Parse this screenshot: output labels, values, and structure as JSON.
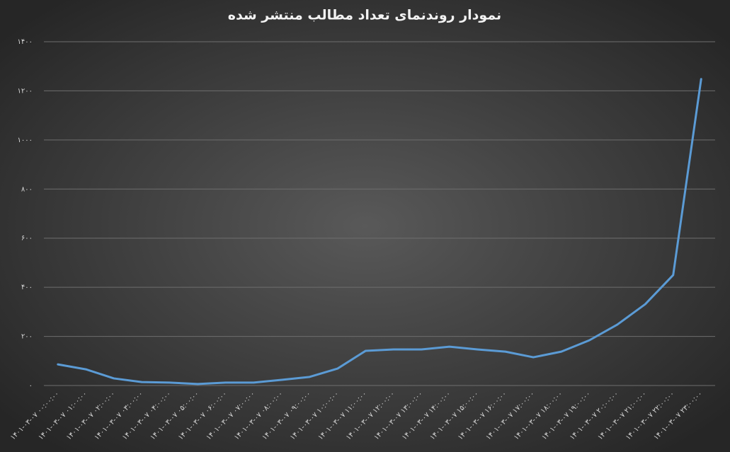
{
  "chart_data": {
    "type": "line",
    "title": "نمودار روندنمای تعداد مطالب منتشر شده",
    "categories": [
      "۱۴۰۱-۰۳-۰۷ ۰۰:۰۰:۰۰",
      "۱۴۰۱-۰۳-۰۷ ۰۱:۰۰:۰۰",
      "۱۴۰۱-۰۳-۰۷ ۰۲:۰۰:۰۰",
      "۱۴۰۱-۰۳-۰۷ ۰۳:۰۰:۰۰",
      "۱۴۰۱-۰۳-۰۷ ۰۴:۰۰:۰۰",
      "۱۴۰۱-۰۳-۰۷ ۰۵:۰۰:۰۰",
      "۱۴۰۱-۰۳-۰۷ ۰۶:۰۰:۰۰",
      "۱۴۰۱-۰۳-۰۷ ۰۷:۰۰:۰۰",
      "۱۴۰۱-۰۳-۰۷ ۰۸:۰۰:۰۰",
      "۱۴۰۱-۰۳-۰۷ ۰۹:۰۰:۰۰",
      "۱۴۰۱-۰۳-۰۷ ۱۰:۰۰:۰۰",
      "۱۴۰۱-۰۳-۰۷ ۱۱:۰۰:۰۰",
      "۱۴۰۱-۰۳-۰۷ ۱۲:۰۰:۰۰",
      "۱۴۰۱-۰۳-۰۷ ۱۳:۰۰:۰۰",
      "۱۴۰۱-۰۳-۰۷ ۱۴:۰۰:۰۰",
      "۱۴۰۱-۰۳-۰۷ ۱۵:۰۰:۰۰",
      "۱۴۰۱-۰۳-۰۷ ۱۶:۰۰:۰۰",
      "۱۴۰۱-۰۳-۰۷ ۱۷:۰۰:۰۰",
      "۱۴۰۱-۰۳-۰۷ ۱۸:۰۰:۰۰",
      "۱۴۰۱-۰۳-۰۷ ۱۹:۰۰:۰۰",
      "۱۴۰۱-۰۳-۰۷ ۲۰:۰۰:۰۰",
      "۱۴۰۱-۰۳-۰۷ ۲۱:۰۰:۰۰",
      "۱۴۰۱-۰۳-۰۷ ۲۲:۰۰:۰۰",
      "۱۴۰۱-۰۳-۰۷ ۲۳:۰۰:۰۰"
    ],
    "values": [
      86,
      66,
      29,
      14,
      12,
      6,
      12,
      12,
      23,
      35,
      69,
      141,
      147,
      147,
      158,
      147,
      138,
      115,
      138,
      184,
      248,
      331,
      450,
      1248
    ],
    "color": "#5b9bd5",
    "ylim": [
      0,
      1400
    ],
    "yticks": [
      {
        "value": 0,
        "label": "۰"
      },
      {
        "value": 200,
        "label": "۲۰۰"
      },
      {
        "value": 400,
        "label": "۴۰۰"
      },
      {
        "value": 600,
        "label": "۶۰۰"
      },
      {
        "value": 800,
        "label": "۸۰۰"
      },
      {
        "value": 1000,
        "label": "۱۰۰۰"
      },
      {
        "value": 1200,
        "label": "۱۲۰۰"
      },
      {
        "value": 1400,
        "label": "۱۴۰۰"
      }
    ],
    "grid": true
  }
}
